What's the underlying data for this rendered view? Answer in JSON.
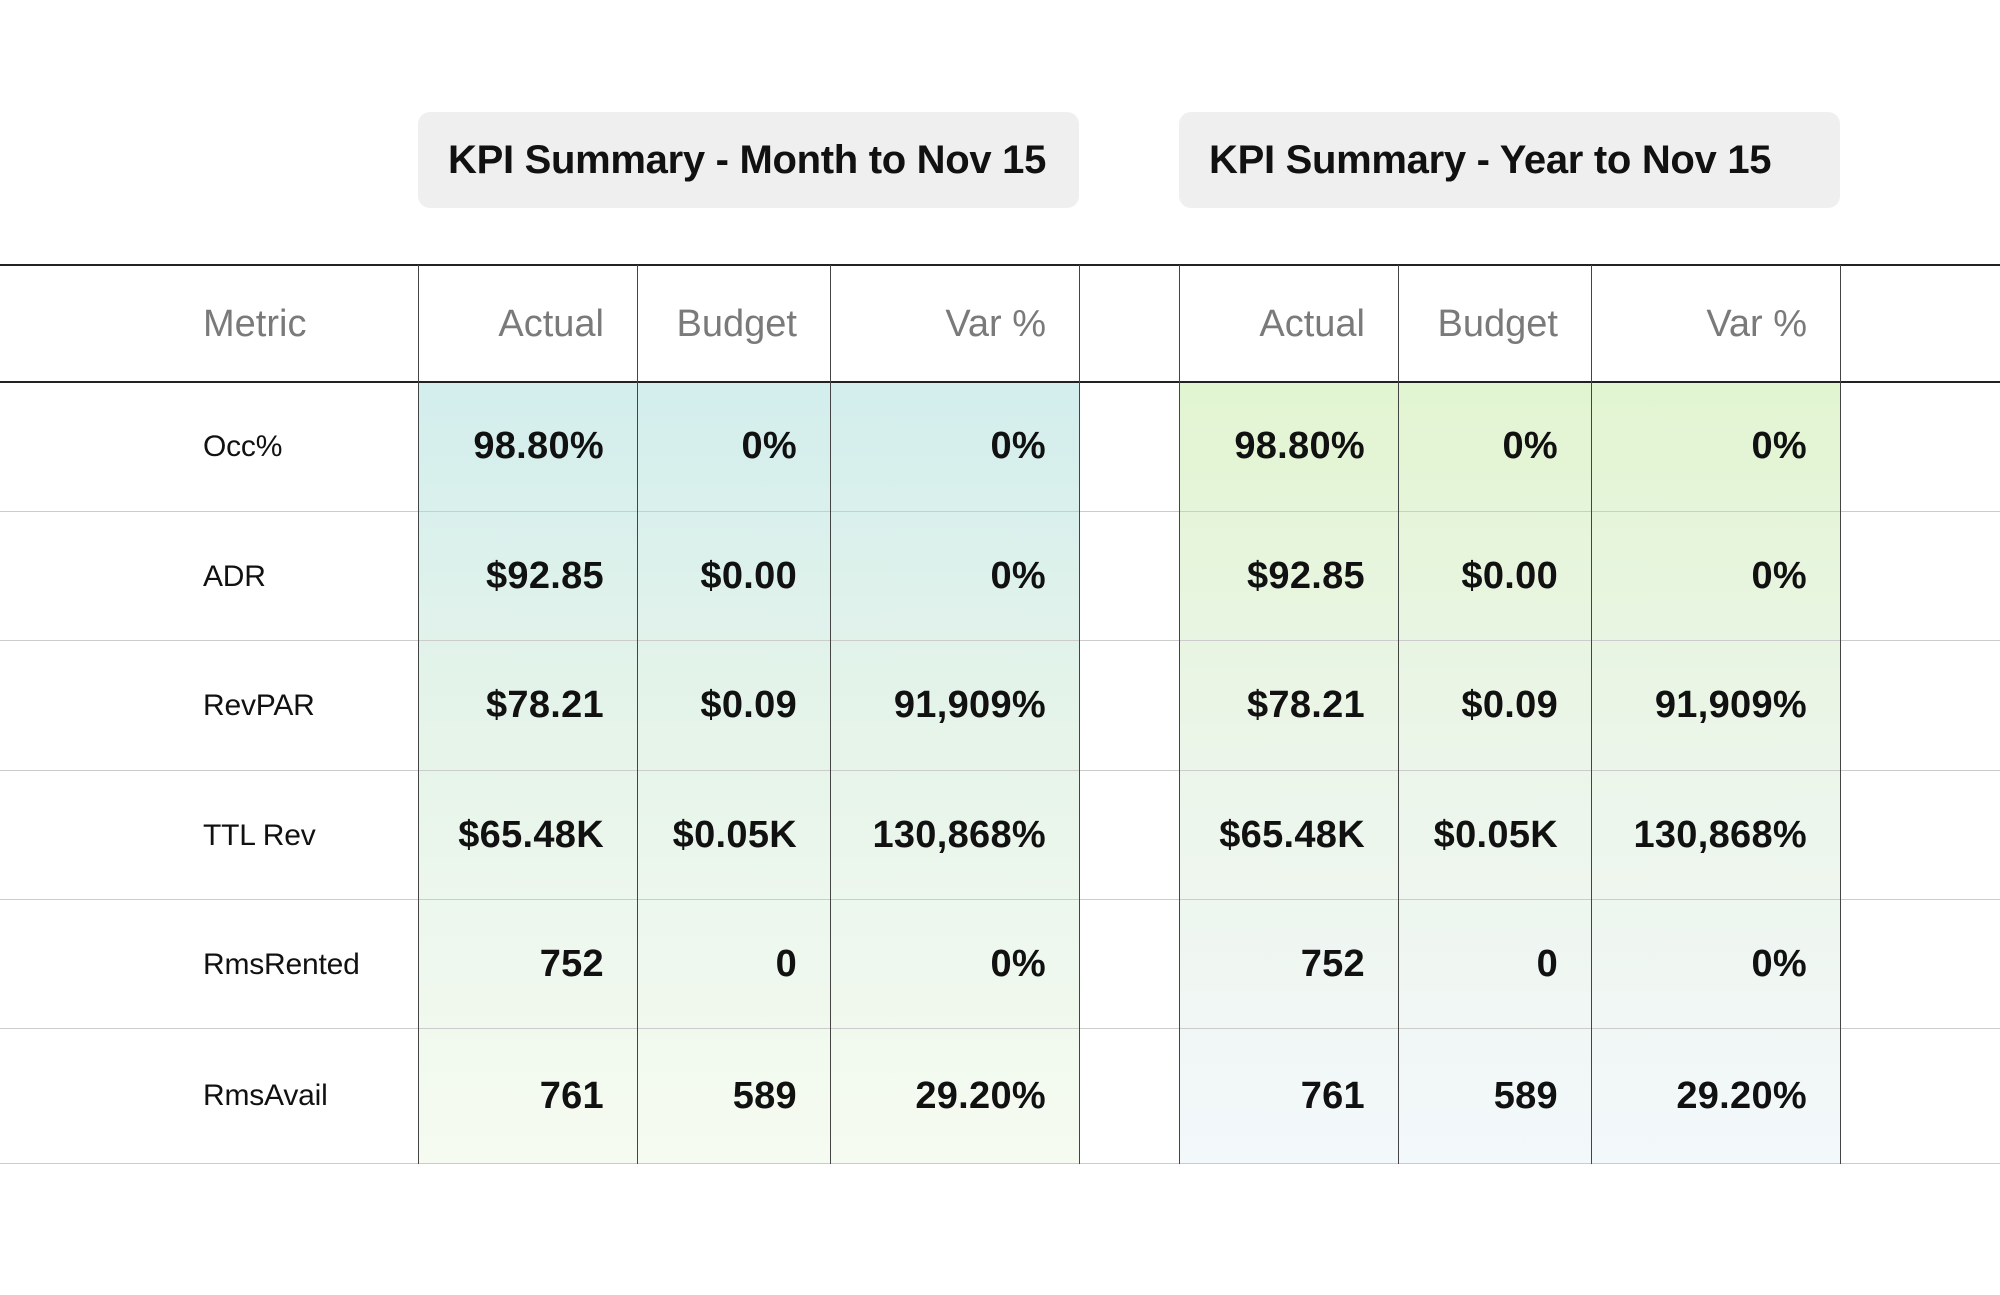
{
  "sections": {
    "month_title": "KPI Summary - Month to Nov 15",
    "year_title": "KPI Summary - Year to Nov 15"
  },
  "headers": {
    "metric": "Metric",
    "month": [
      "Actual",
      "Budget",
      "Var %"
    ],
    "year": [
      "Actual",
      "Budget",
      "Var %"
    ]
  },
  "rows": [
    {
      "metric": "Occ%",
      "month": [
        "98.80%",
        "0%",
        "0%"
      ],
      "year": [
        "98.80%",
        "0%",
        "0%"
      ]
    },
    {
      "metric": "ADR",
      "month": [
        "$92.85",
        "$0.00",
        "0%"
      ],
      "year": [
        "$92.85",
        "$0.00",
        "0%"
      ]
    },
    {
      "metric": "RevPAR",
      "month": [
        "$78.21",
        "$0.09",
        "91,909%"
      ],
      "year": [
        "$78.21",
        "$0.09",
        "91,909%"
      ]
    },
    {
      "metric": "TTL Rev",
      "month": [
        "$65.48K",
        "$0.05K",
        "130,868%"
      ],
      "year": [
        "$65.48K",
        "$0.05K",
        "130,868%"
      ]
    },
    {
      "metric": "RmsRented",
      "month": [
        "752",
        "0",
        "0%"
      ],
      "year": [
        "752",
        "0",
        "0%"
      ]
    },
    {
      "metric": "RmsAvail",
      "month": [
        "761",
        "589",
        "29.20%"
      ],
      "year": [
        "761",
        "589",
        "29.20%"
      ]
    }
  ],
  "colors": {
    "month_gradient_top": "#d3eeed",
    "month_gradient_bottom": "#f6fbf1",
    "year_gradient_top": "#e2f5d1",
    "year_gradient_bottom": "#f3f8fb",
    "title_pill_bg": "#efefef"
  }
}
